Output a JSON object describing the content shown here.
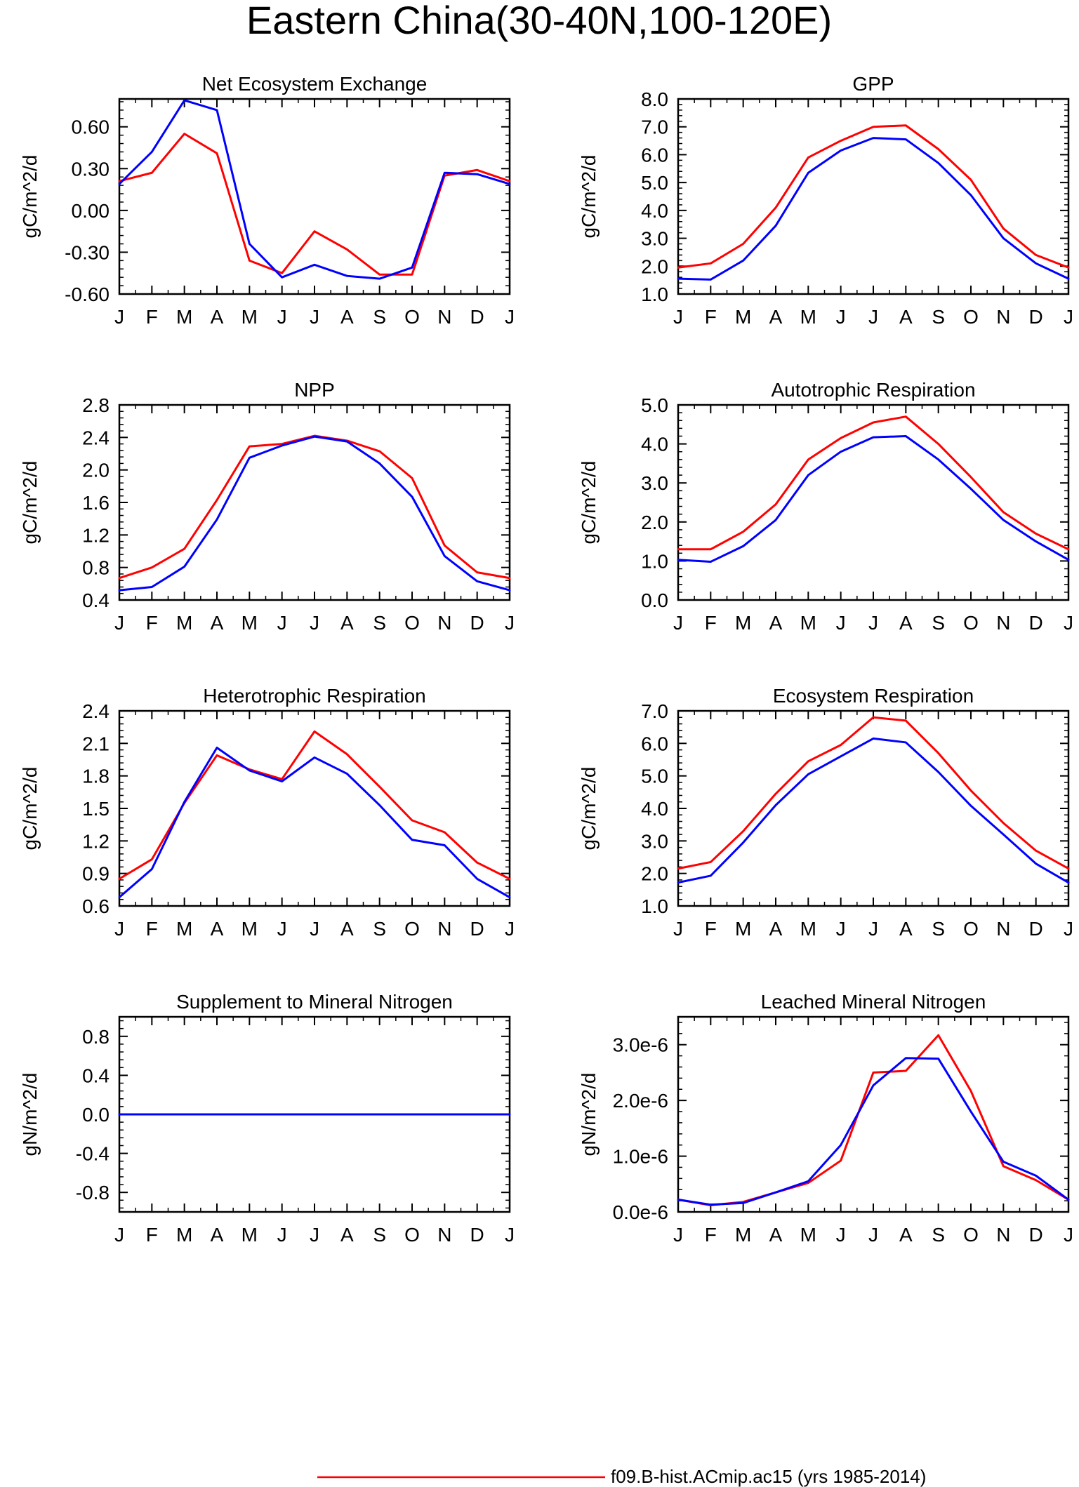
{
  "figure": {
    "title": "Eastern China(30-40N,100-120E)",
    "legend": {
      "entries": [
        {
          "label": "f09.B-hist.ACmip.ac15 (yrs 1985-2014)",
          "color": "#ff0000"
        }
      ]
    }
  },
  "colors": {
    "run_red": "#ff0000",
    "run_blue": "#0000ff",
    "axis": "#000000"
  },
  "chart_data": [
    {
      "type": "line",
      "title": "Net Ecosystem Exchange",
      "xlabel": "",
      "ylabel": "gC/m^2/d",
      "categories": [
        "J",
        "F",
        "M",
        "A",
        "M",
        "J",
        "J",
        "A",
        "S",
        "O",
        "N",
        "D",
        "J"
      ],
      "ylim": [
        -0.6,
        0.8
      ],
      "yticks": [
        -0.6,
        -0.3,
        0.0,
        0.3,
        0.6
      ],
      "ytick_labels": [
        "-0.60",
        "-0.30",
        "0.00",
        "0.30",
        "0.60"
      ],
      "series": [
        {
          "color": "#ff0000",
          "values": [
            0.21,
            0.27,
            0.55,
            0.41,
            -0.36,
            -0.45,
            -0.15,
            -0.28,
            -0.46,
            -0.46,
            0.25,
            0.29,
            0.21
          ]
        },
        {
          "color": "#0000ff",
          "values": [
            0.19,
            0.42,
            0.79,
            0.72,
            -0.24,
            -0.48,
            -0.39,
            -0.47,
            -0.49,
            -0.41,
            0.27,
            0.26,
            0.19
          ]
        }
      ]
    },
    {
      "type": "line",
      "title": "GPP",
      "xlabel": "",
      "ylabel": "gC/m^2/d",
      "categories": [
        "J",
        "F",
        "M",
        "A",
        "M",
        "J",
        "J",
        "A",
        "S",
        "O",
        "N",
        "D",
        "J"
      ],
      "ylim": [
        1.0,
        8.0
      ],
      "yticks": [
        1,
        2,
        3,
        4,
        5,
        6,
        7,
        8
      ],
      "ytick_labels": [
        "1.0",
        "2.0",
        "3.0",
        "4.0",
        "5.0",
        "6.0",
        "7.0",
        "8.0"
      ],
      "series": [
        {
          "color": "#ff0000",
          "values": [
            1.95,
            2.1,
            2.8,
            4.1,
            5.9,
            6.5,
            7.0,
            7.05,
            6.2,
            5.1,
            3.35,
            2.4,
            1.95
          ]
        },
        {
          "color": "#0000ff",
          "values": [
            1.55,
            1.52,
            2.2,
            3.45,
            5.35,
            6.15,
            6.6,
            6.55,
            5.7,
            4.55,
            3.0,
            2.1,
            1.55
          ]
        }
      ]
    },
    {
      "type": "line",
      "title": "NPP",
      "xlabel": "",
      "ylabel": "gC/m^2/d",
      "categories": [
        "J",
        "F",
        "M",
        "A",
        "M",
        "J",
        "J",
        "A",
        "S",
        "O",
        "N",
        "D",
        "J"
      ],
      "ylim": [
        0.4,
        2.8
      ],
      "yticks": [
        0.4,
        0.8,
        1.2,
        1.6,
        2.0,
        2.4,
        2.8
      ],
      "ytick_labels": [
        "0.4",
        "0.8",
        "1.2",
        "1.6",
        "2.0",
        "2.4",
        "2.8"
      ],
      "series": [
        {
          "color": "#ff0000",
          "values": [
            0.67,
            0.8,
            1.03,
            1.63,
            2.29,
            2.32,
            2.42,
            2.36,
            2.23,
            1.9,
            1.07,
            0.74,
            0.67
          ]
        },
        {
          "color": "#0000ff",
          "values": [
            0.52,
            0.56,
            0.81,
            1.39,
            2.15,
            2.3,
            2.41,
            2.35,
            2.08,
            1.67,
            0.94,
            0.63,
            0.52
          ]
        }
      ]
    },
    {
      "type": "line",
      "title": "Autotrophic Respiration",
      "xlabel": "",
      "ylabel": "gC/m^2/d",
      "categories": [
        "J",
        "F",
        "M",
        "A",
        "M",
        "J",
        "J",
        "A",
        "S",
        "O",
        "N",
        "D",
        "J"
      ],
      "ylim": [
        0.0,
        5.0
      ],
      "yticks": [
        0,
        1,
        2,
        3,
        4,
        5
      ],
      "ytick_labels": [
        "0.0",
        "1.0",
        "2.0",
        "3.0",
        "4.0",
        "5.0"
      ],
      "series": [
        {
          "color": "#ff0000",
          "values": [
            1.3,
            1.3,
            1.75,
            2.45,
            3.6,
            4.15,
            4.55,
            4.7,
            4.0,
            3.15,
            2.25,
            1.7,
            1.3
          ]
        },
        {
          "color": "#0000ff",
          "values": [
            1.03,
            0.98,
            1.38,
            2.05,
            3.2,
            3.8,
            4.17,
            4.2,
            3.6,
            2.85,
            2.05,
            1.5,
            1.03
          ]
        }
      ]
    },
    {
      "type": "line",
      "title": "Heterotrophic Respiration",
      "xlabel": "",
      "ylabel": "gC/m^2/d",
      "categories": [
        "J",
        "F",
        "M",
        "A",
        "M",
        "J",
        "J",
        "A",
        "S",
        "O",
        "N",
        "D",
        "J"
      ],
      "ylim": [
        0.6,
        2.4
      ],
      "yticks": [
        0.6,
        0.9,
        1.2,
        1.5,
        1.8,
        2.1,
        2.4
      ],
      "ytick_labels": [
        "0.6",
        "0.9",
        "1.2",
        "1.5",
        "1.8",
        "2.1",
        "2.4"
      ],
      "series": [
        {
          "color": "#ff0000",
          "values": [
            0.85,
            1.03,
            1.55,
            1.99,
            1.86,
            1.77,
            2.21,
            2.0,
            1.7,
            1.39,
            1.28,
            1.0,
            0.85
          ]
        },
        {
          "color": "#0000ff",
          "values": [
            0.68,
            0.94,
            1.56,
            2.06,
            1.85,
            1.75,
            1.97,
            1.82,
            1.53,
            1.21,
            1.16,
            0.85,
            0.68
          ]
        }
      ]
    },
    {
      "type": "line",
      "title": "Ecosystem Respiration",
      "xlabel": "",
      "ylabel": "gC/m^2/d",
      "categories": [
        "J",
        "F",
        "M",
        "A",
        "M",
        "J",
        "J",
        "A",
        "S",
        "O",
        "N",
        "D",
        "J"
      ],
      "ylim": [
        1.0,
        7.0
      ],
      "yticks": [
        1,
        2,
        3,
        4,
        5,
        6,
        7
      ],
      "ytick_labels": [
        "1.0",
        "2.0",
        "3.0",
        "4.0",
        "5.0",
        "6.0",
        "7.0"
      ],
      "series": [
        {
          "color": "#ff0000",
          "values": [
            2.15,
            2.35,
            3.3,
            4.45,
            5.45,
            5.95,
            6.8,
            6.7,
            5.7,
            4.55,
            3.55,
            2.7,
            2.15
          ]
        },
        {
          "color": "#0000ff",
          "values": [
            1.72,
            1.93,
            2.95,
            4.1,
            5.05,
            5.6,
            6.15,
            6.03,
            5.12,
            4.08,
            3.2,
            2.3,
            1.72
          ]
        }
      ]
    },
    {
      "type": "line",
      "title": "Supplement to Mineral Nitrogen",
      "xlabel": "",
      "ylabel": "gN/m^2/d",
      "categories": [
        "J",
        "F",
        "M",
        "A",
        "M",
        "J",
        "J",
        "A",
        "S",
        "O",
        "N",
        "D",
        "J"
      ],
      "ylim": [
        -1.0,
        1.0
      ],
      "yticks": [
        -0.8,
        -0.4,
        0.0,
        0.4,
        0.8
      ],
      "ytick_labels": [
        "-0.8",
        "-0.4",
        "0.0",
        "0.4",
        "0.8"
      ],
      "series": [
        {
          "color": "#ff0000",
          "values": [
            0,
            0,
            0,
            0,
            0,
            0,
            0,
            0,
            0,
            0,
            0,
            0,
            0
          ]
        },
        {
          "color": "#0000ff",
          "values": [
            0,
            0,
            0,
            0,
            0,
            0,
            0,
            0,
            0,
            0,
            0,
            0,
            0
          ]
        }
      ]
    },
    {
      "type": "line",
      "title": "Leached Mineral Nitrogen",
      "xlabel": "",
      "ylabel": "gN/m^2/d",
      "categories": [
        "J",
        "F",
        "M",
        "A",
        "M",
        "J",
        "J",
        "A",
        "S",
        "O",
        "N",
        "D",
        "J"
      ],
      "ylim": [
        0.0,
        3.5e-06
      ],
      "yticks": [
        0.0,
        1e-06,
        2e-06,
        3e-06
      ],
      "ytick_labels": [
        "0.0e-6",
        "1.0e-6",
        "2.0e-6",
        "3.0e-6"
      ],
      "series": [
        {
          "color": "#ff0000",
          "values": [
            2.2e-07,
            1.2e-07,
            1.8e-07,
            3.5e-07,
            5.2e-07,
            9.2e-07,
            2.5e-06,
            2.53e-06,
            3.17e-06,
            2.17e-06,
            8.2e-07,
            5.7e-07,
            2.2e-07
          ]
        },
        {
          "color": "#0000ff",
          "values": [
            2.2e-07,
            1.3e-07,
            1.6e-07,
            3.5e-07,
            5.5e-07,
            1.2e-06,
            2.27e-06,
            2.76e-06,
            2.75e-06,
            1.8e-06,
            9e-07,
            6.5e-07,
            2.2e-07
          ]
        }
      ]
    }
  ]
}
